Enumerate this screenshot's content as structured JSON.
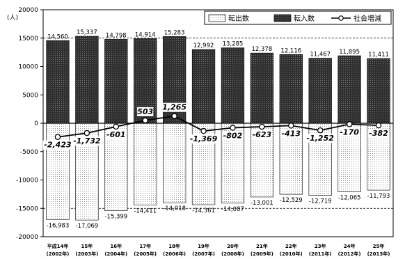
{
  "chart_data": {
    "type": "bar",
    "y_unit": "(人)",
    "ylim": [
      -20000,
      20000
    ],
    "y_ticks": [
      20000,
      15000,
      10000,
      5000,
      0,
      -5000,
      -10000,
      -15000,
      -20000
    ],
    "categories": [
      {
        "era": "平成14年",
        "year": "(2002年)"
      },
      {
        "era": "15年",
        "year": "(2003年)"
      },
      {
        "era": "16年",
        "year": "(2004年)"
      },
      {
        "era": "17年",
        "year": "(2005年)"
      },
      {
        "era": "18年",
        "year": "(2006年)"
      },
      {
        "era": "19年",
        "year": "(2007年)"
      },
      {
        "era": "20年",
        "year": "(2008年)"
      },
      {
        "era": "21年",
        "year": "(2009年)"
      },
      {
        "era": "22年",
        "year": "(2010年)"
      },
      {
        "era": "23年",
        "year": "(2011年)"
      },
      {
        "era": "24年",
        "year": "(2012年)"
      },
      {
        "era": "25年",
        "year": "(2013年)"
      }
    ],
    "series": [
      {
        "name": "転入数",
        "kind": "bar",
        "color": "#3a3a3a",
        "values": [
          14560,
          15337,
          14798,
          14914,
          15283,
          12992,
          13285,
          12378,
          12116,
          11467,
          11895,
          11411
        ],
        "labels": [
          "14,560",
          "15,337",
          "14,798",
          "14,914",
          "15,283",
          "12,992",
          "13,285",
          "12,378",
          "12,116",
          "11,467",
          "11,895",
          "11,411"
        ]
      },
      {
        "name": "転出数",
        "kind": "bar",
        "color": "#f2f2f2",
        "values": [
          -16983,
          -17069,
          -15399,
          -14411,
          -14018,
          -14361,
          -14087,
          -13001,
          -12529,
          -12719,
          -12065,
          -11793
        ],
        "labels": [
          "-16,983",
          "-17,069",
          "-15,399",
          "-14,411",
          "-14,018",
          "-14,361",
          "-14,087",
          "-13,001",
          "-12,529",
          "-12,719",
          "-12,065",
          "-11,793"
        ]
      },
      {
        "name": "社会増減",
        "kind": "line",
        "color": "#000000",
        "values": [
          -2423,
          -1732,
          -601,
          503,
          1265,
          -1369,
          -802,
          -623,
          -413,
          -1252,
          -170,
          -382
        ],
        "labels": [
          "-2,423",
          "-1,732",
          "-601",
          "503",
          "1,265",
          "-1,369",
          "-802",
          "-623",
          "-413",
          "-1,252",
          "-170",
          "-382"
        ]
      }
    ],
    "legend": {
      "position": "top-right",
      "order": [
        "転出数",
        "転入数",
        "社会増減"
      ]
    },
    "grid": "dashed at ±15000"
  }
}
